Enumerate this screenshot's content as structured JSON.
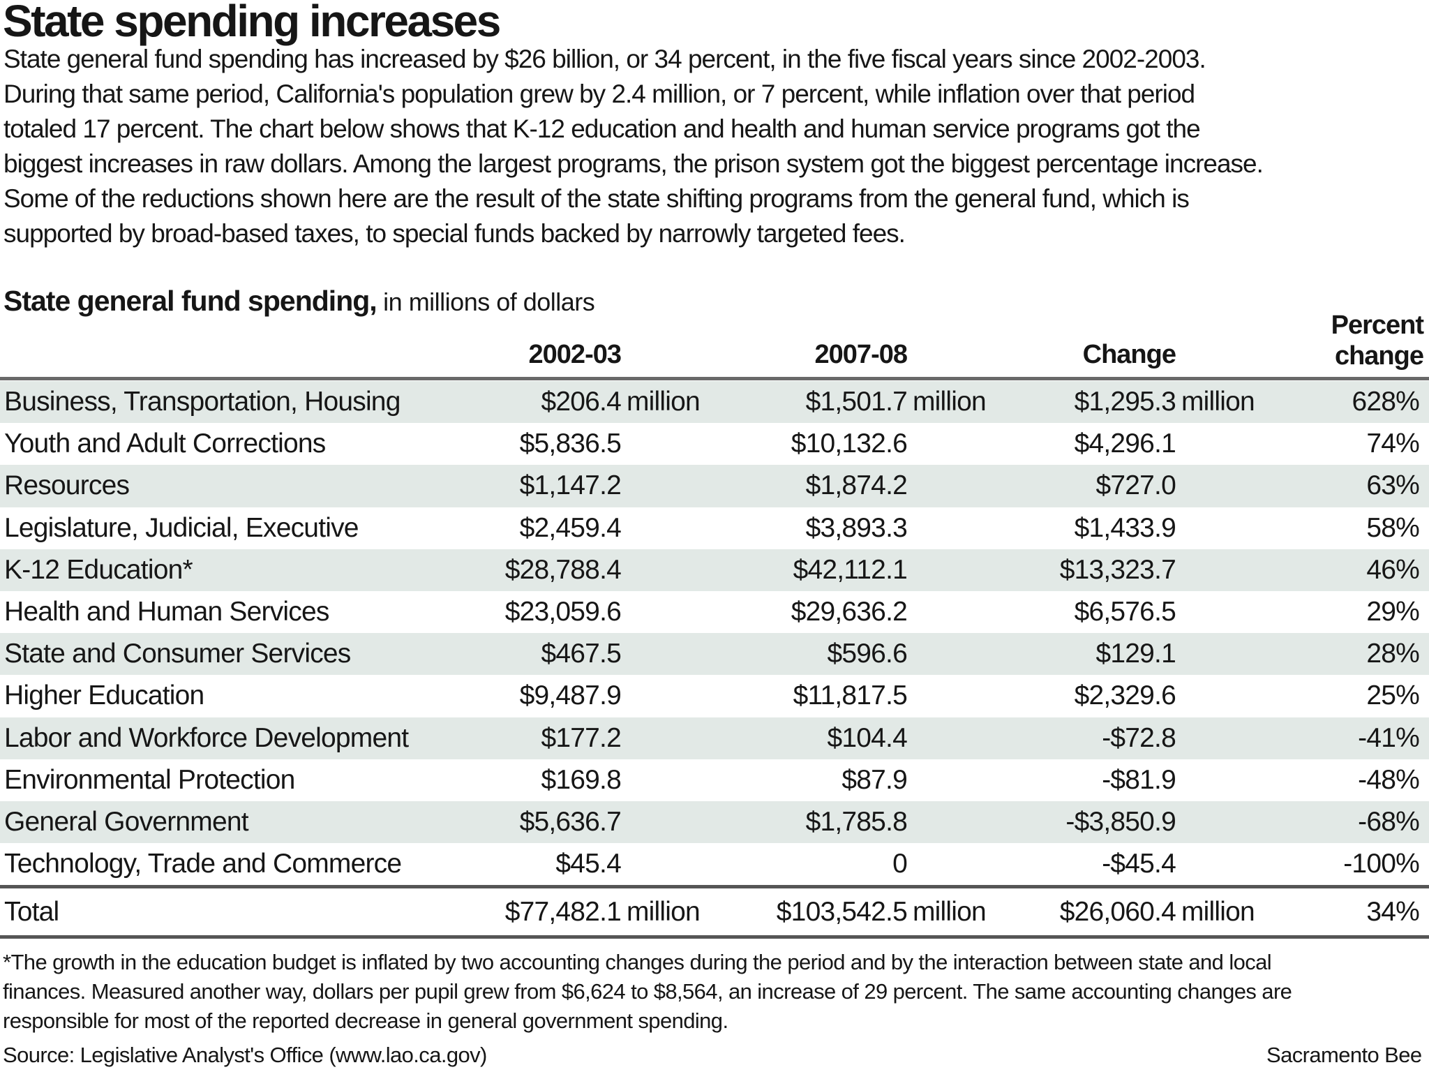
{
  "title": "State spending increases",
  "intro_lines": [
    "State general fund spending has increased by $26 billion, or 34 percent, in the five fiscal years since 2002-2003.",
    "During that same period, California's population grew by 2.4 million, or 7 percent, while inflation over that period",
    "totaled 17 percent. The chart below shows that K-12 education and health and human service programs got the",
    "biggest increases in raw dollars. Among the largest programs, the prison system got the biggest percentage increase.",
    "Some of the reductions shown here are the result of the state shifting programs from the general fund, which is",
    "supported by broad-based taxes, to special funds backed by narrowly targeted fees."
  ],
  "table": {
    "section_title_bold": "State general fund spending,",
    "section_title_rest": " in millions of dollars",
    "col_headers": {
      "c1": "2002-03",
      "c2": "2007-08",
      "c3": "Change",
      "c4_line1": "Percent",
      "c4_line2": "change"
    },
    "rows": [
      {
        "label": "Business, Transportation, Housing",
        "v1": "$206.4",
        "v1s": " million",
        "v2": "$1,501.7",
        "v2s": " million",
        "v3": "$1,295.3",
        "v3s": " million",
        "v4": "628%"
      },
      {
        "label": "Youth and Adult Corrections",
        "v1": "$5,836.5",
        "v1s": "",
        "v2": "$10,132.6",
        "v2s": "",
        "v3": "$4,296.1",
        "v3s": "",
        "v4": "74%"
      },
      {
        "label": "Resources",
        "v1": "$1,147.2",
        "v1s": "",
        "v2": "$1,874.2",
        "v2s": "",
        "v3": "$727.0",
        "v3s": "",
        "v4": "63%"
      },
      {
        "label": "Legislature, Judicial, Executive",
        "v1": "$2,459.4",
        "v1s": "",
        "v2": "$3,893.3",
        "v2s": "",
        "v3": "$1,433.9",
        "v3s": "",
        "v4": "58%"
      },
      {
        "label": "K-12 Education*",
        "v1": "$28,788.4",
        "v1s": "",
        "v2": "$42,112.1",
        "v2s": "",
        "v3": "$13,323.7",
        "v3s": "",
        "v4": "46%"
      },
      {
        "label": "Health and Human Services",
        "v1": "$23,059.6",
        "v1s": "",
        "v2": "$29,636.2",
        "v2s": "",
        "v3": "$6,576.5",
        "v3s": "",
        "v4": "29%"
      },
      {
        "label": "State and Consumer Services",
        "v1": "$467.5",
        "v1s": "",
        "v2": "$596.6",
        "v2s": "",
        "v3": "$129.1",
        "v3s": "",
        "v4": "28%"
      },
      {
        "label": "Higher Education",
        "v1": "$9,487.9",
        "v1s": "",
        "v2": "$11,817.5",
        "v2s": "",
        "v3": "$2,329.6",
        "v3s": "",
        "v4": "25%"
      },
      {
        "label": "Labor and Workforce Development",
        "v1": "$177.2",
        "v1s": "",
        "v2": "$104.4",
        "v2s": "",
        "v3": "-$72.8",
        "v3s": "",
        "v4": "-41%"
      },
      {
        "label": "Environmental Protection",
        "v1": "$169.8",
        "v1s": "",
        "v2": "$87.9",
        "v2s": "",
        "v3": "-$81.9",
        "v3s": "",
        "v4": "-48%"
      },
      {
        "label": "General Government",
        "v1": "$5,636.7",
        "v1s": "",
        "v2": "$1,785.8",
        "v2s": "",
        "v3": "-$3,850.9",
        "v3s": "",
        "v4": "-68%"
      },
      {
        "label": "Technology, Trade and Commerce",
        "v1": "$45.4",
        "v1s": "",
        "v2": "0",
        "v2s": "",
        "v3": "-$45.4",
        "v3s": "",
        "v4": "-100%"
      }
    ],
    "total": {
      "label": "Total",
      "v1": "$77,482.1",
      "v1s": " million",
      "v2": "$103,542.5",
      "v2s": " million",
      "v3": "$26,060.4",
      "v3s": " million",
      "v4": "34%"
    }
  },
  "footnote_lines": [
    "*The growth in the education budget is inflated by two accounting changes during the period and by the interaction between state and local",
    "finances. Measured another way, dollars per pupil grew from $6,624 to $8,564, an increase of 29 percent. The same accounting changes are",
    "responsible for most of the reported decrease in general government spending."
  ],
  "source": "Source: Legislative Analyst's Office (www.lao.ca.gov)",
  "credit": "Sacramento Bee",
  "colors": {
    "stripe": "#e2e9e6",
    "header_rule": "#696969",
    "total_rule": "#565656",
    "text": "#161616"
  },
  "chart_data": {
    "type": "table",
    "title": "State general fund spending, in millions of dollars",
    "columns": [
      "2002-03",
      "2007-08",
      "Change",
      "Percent change"
    ],
    "rows": [
      {
        "label": "Business, Transportation, Housing",
        "y2002_03": 206.4,
        "y2007_08": 1501.7,
        "change": 1295.3,
        "percent_change": 628
      },
      {
        "label": "Youth and Adult Corrections",
        "y2002_03": 5836.5,
        "y2007_08": 10132.6,
        "change": 4296.1,
        "percent_change": 74
      },
      {
        "label": "Resources",
        "y2002_03": 1147.2,
        "y2007_08": 1874.2,
        "change": 727.0,
        "percent_change": 63
      },
      {
        "label": "Legislature, Judicial, Executive",
        "y2002_03": 2459.4,
        "y2007_08": 3893.3,
        "change": 1433.9,
        "percent_change": 58
      },
      {
        "label": "K-12 Education",
        "y2002_03": 28788.4,
        "y2007_08": 42112.1,
        "change": 13323.7,
        "percent_change": 46
      },
      {
        "label": "Health and Human Services",
        "y2002_03": 23059.6,
        "y2007_08": 29636.2,
        "change": 6576.5,
        "percent_change": 29
      },
      {
        "label": "State and Consumer Services",
        "y2002_03": 467.5,
        "y2007_08": 596.6,
        "change": 129.1,
        "percent_change": 28
      },
      {
        "label": "Higher Education",
        "y2002_03": 9487.9,
        "y2007_08": 11817.5,
        "change": 2329.6,
        "percent_change": 25
      },
      {
        "label": "Labor and Workforce Development",
        "y2002_03": 177.2,
        "y2007_08": 104.4,
        "change": -72.8,
        "percent_change": -41
      },
      {
        "label": "Environmental Protection",
        "y2002_03": 169.8,
        "y2007_08": 87.9,
        "change": -81.9,
        "percent_change": -48
      },
      {
        "label": "General Government",
        "y2002_03": 5636.7,
        "y2007_08": 1785.8,
        "change": -3850.9,
        "percent_change": -68
      },
      {
        "label": "Technology, Trade and Commerce",
        "y2002_03": 45.4,
        "y2007_08": 0,
        "change": -45.4,
        "percent_change": -100
      }
    ],
    "total": {
      "label": "Total",
      "y2002_03": 77482.1,
      "y2007_08": 103542.5,
      "change": 26060.4,
      "percent_change": 34
    },
    "units": "millions of dollars"
  }
}
